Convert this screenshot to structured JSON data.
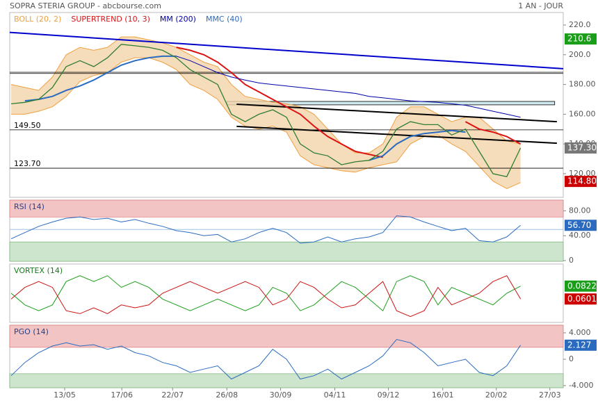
{
  "header": {
    "title": "SOPRA STERIA GROUP - abcbourse.com",
    "period": "1 AN - JOUR"
  },
  "chart_data": [
    {
      "type": "line",
      "x": [
        0,
        1,
        2,
        3,
        4,
        5,
        6,
        7,
        8,
        9,
        10,
        11,
        12,
        13,
        14,
        15,
        16,
        17,
        18,
        19,
        20,
        21,
        22,
        23,
        24,
        25,
        26,
        27,
        28,
        29,
        30,
        31,
        32,
        33,
        34,
        35,
        36,
        37
      ],
      "xlim": [
        -0.1,
        40.1
      ],
      "ylim": [
        104.1,
        228.4
      ],
      "yticks": [
        {
          "value": 220,
          "label": "220.0"
        },
        {
          "value": 200,
          "label": "200.0"
        },
        {
          "value": 180,
          "label": "180.00"
        },
        {
          "value": 160,
          "label": "160.00"
        },
        {
          "value": 140,
          "label": "140.00"
        },
        {
          "value": 120,
          "label": "120.00"
        }
      ],
      "values": [
        167,
        168,
        170,
        178,
        192,
        196,
        192,
        198,
        207,
        206,
        205,
        203,
        198,
        190,
        185,
        180,
        160,
        155,
        160,
        163,
        158,
        140,
        134,
        132,
        126,
        128,
        129,
        135,
        150,
        155,
        153,
        153,
        146,
        150,
        135,
        120,
        118,
        137.3
      ],
      "close_color": "#2f7d2f",
      "band": {
        "name": "BOLL (20, 2)",
        "color": "#f0a040",
        "fill": "#f3d3aa",
        "upper": [
          180,
          178,
          176,
          185,
          200,
          205,
          203,
          205,
          212,
          212,
          210,
          208,
          205,
          200,
          195,
          192,
          180,
          172,
          170,
          168,
          167,
          165,
          160,
          150,
          140,
          134,
          134,
          140,
          158,
          165,
          165,
          160,
          155,
          158,
          158,
          150,
          142,
          140
        ],
        "lower": [
          160,
          160,
          162,
          165,
          172,
          182,
          186,
          188,
          195,
          198,
          198,
          195,
          190,
          180,
          176,
          170,
          158,
          152,
          150,
          152,
          148,
          132,
          126,
          124,
          122,
          121,
          124,
          126,
          128,
          140,
          145,
          146,
          140,
          135,
          125,
          115,
          110,
          114
        ]
      },
      "series": [
        {
          "name": "SUPERTREND (10, 3)",
          "color": "#dd1111",
          "width": 2,
          "values": [
            null,
            null,
            null,
            null,
            null,
            null,
            null,
            null,
            null,
            null,
            null,
            null,
            205,
            203,
            200,
            195,
            188,
            180,
            175,
            170,
            165,
            160,
            152,
            145,
            140,
            135,
            133,
            131,
            null,
            null,
            null,
            null,
            null,
            155,
            150,
            148,
            145,
            140
          ]
        },
        {
          "name": "MM (200)",
          "color": "#0000aa",
          "width": 1,
          "values": [
            null,
            null,
            null,
            null,
            null,
            null,
            null,
            null,
            null,
            null,
            null,
            null,
            199,
            196,
            192,
            188,
            185,
            183,
            181,
            180,
            179,
            178,
            177,
            176,
            175,
            174,
            172,
            171,
            170,
            169,
            168.5,
            168,
            167,
            166,
            164,
            162,
            160,
            158
          ]
        },
        {
          "name": "MMC (40)",
          "color": "#2a6bbf",
          "width": 2,
          "values": [
            null,
            169,
            170,
            172,
            176,
            179,
            183,
            188,
            193,
            196,
            198,
            199,
            199,
            null,
            null,
            null,
            null,
            null,
            null,
            null,
            null,
            null,
            null,
            null,
            null,
            null,
            129,
            132,
            140,
            145,
            147,
            148,
            149,
            148,
            null,
            null,
            null,
            null
          ]
        }
      ],
      "hlines": [
        {
          "value": 149.5,
          "label": "149.50"
        },
        {
          "value": 123.7,
          "label": "123.70"
        },
        {
          "value": 188.2
        },
        {
          "value": 187.4
        }
      ],
      "zones": [
        {
          "x": [
            15.67,
            39.48
          ],
          "values": [
            166.3,
            168.6
          ],
          "color": "#cfe8ee"
        }
      ],
      "trendlines": [
        {
          "x": [
            -0.1,
            40.1
          ],
          "values": [
            215,
            190.6
          ],
          "color": "#0000cc"
        },
        {
          "x": [
            16.38,
            39.64
          ],
          "values": [
            166.7,
            155
          ],
          "color": "#000000"
        },
        {
          "x": [
            16.38,
            39.64
          ],
          "values": [
            151.8,
            140.5
          ],
          "color": "#000000"
        }
      ],
      "markers": [
        {
          "value": 210.6,
          "label": "210.6",
          "color": "#1a9e1a"
        },
        {
          "value": 137.3,
          "label": "137.30",
          "color": "#777777"
        },
        {
          "value": 114.8,
          "label": "114.80",
          "color": "#cc0000"
        }
      ]
    },
    {
      "type": "line",
      "title": "RSI (14)",
      "title_color": "#24408a",
      "ylim": [
        -1.1,
        97.2
      ],
      "yticks": [
        {
          "value": 80,
          "label": "80.00"
        },
        {
          "value": 40,
          "label": "40.00"
        },
        0
      ],
      "bands": [
        {
          "above": 70,
          "color": "#f2c4c4"
        },
        {
          "below": 30,
          "color": "#cde5cd"
        }
      ],
      "midline": 50,
      "series": [
        {
          "color": "#2a6bbf",
          "width": 1,
          "values": [
            35,
            45,
            55,
            62,
            68,
            70,
            66,
            68,
            62,
            66,
            60,
            55,
            48,
            45,
            40,
            42,
            30,
            35,
            45,
            52,
            45,
            28,
            30,
            38,
            30,
            35,
            38,
            45,
            72,
            70,
            62,
            55,
            48,
            52,
            32,
            30,
            38,
            56.7
          ]
        }
      ],
      "markers": [
        {
          "value": 56.7,
          "label": "56.70",
          "color": "#2a6bbf"
        }
      ]
    },
    {
      "type": "line",
      "title": "VORTEX (14)",
      "title_color": "#1a7a1a",
      "ylim": [
        0.02,
        0.12
      ],
      "series": [
        {
          "color": "#1a9e1a",
          "width": 1,
          "values": [
            0.07,
            0.05,
            0.04,
            0.05,
            0.09,
            0.1,
            0.09,
            0.1,
            0.08,
            0.09,
            0.08,
            0.06,
            0.05,
            0.04,
            0.05,
            0.06,
            0.05,
            0.04,
            0.05,
            0.08,
            0.07,
            0.04,
            0.05,
            0.07,
            0.09,
            0.08,
            0.06,
            0.04,
            0.09,
            0.1,
            0.09,
            0.05,
            0.08,
            0.07,
            0.06,
            0.05,
            0.07,
            0.0822
          ]
        },
        {
          "color": "#cc1111",
          "width": 1,
          "values": [
            0.06,
            0.08,
            0.09,
            0.08,
            0.04,
            0.035,
            0.045,
            0.035,
            0.05,
            0.045,
            0.05,
            0.07,
            0.08,
            0.09,
            0.08,
            0.07,
            0.08,
            0.09,
            0.08,
            0.05,
            0.06,
            0.09,
            0.08,
            0.06,
            0.045,
            0.05,
            0.07,
            0.09,
            0.04,
            0.03,
            0.04,
            0.08,
            0.05,
            0.06,
            0.07,
            0.09,
            0.1,
            0.0601
          ]
        }
      ],
      "markers": [
        {
          "value": 0.0822,
          "label": "0.0822",
          "color": "#1a9e1a"
        },
        {
          "value": 0.0601,
          "label": "0.0601",
          "color": "#cc0000"
        }
      ]
    },
    {
      "type": "line",
      "title": "PGO (14)",
      "title_color": "#24408a",
      "ylim": [
        -4.32,
        5.16
      ],
      "yticks": [
        {
          "value": 4,
          "label": "4.000"
        },
        0,
        {
          "value": -4,
          "label": "-4.000"
        }
      ],
      "bands": [
        {
          "above": 1.8,
          "color": "#f2c4c4"
        },
        {
          "below": -2.2,
          "color": "#cde5cd"
        }
      ],
      "series": [
        {
          "color": "#2a6bbf",
          "width": 1,
          "values": [
            -2.5,
            -0.5,
            1,
            2,
            2.5,
            2,
            2.2,
            1.5,
            2,
            1,
            0.5,
            -0.5,
            -1,
            -2,
            -1.5,
            -1,
            -3,
            -2,
            -1,
            1.5,
            0,
            -3,
            -2.5,
            -1.5,
            -3,
            -2,
            -1,
            0.5,
            3,
            2.5,
            1,
            -1,
            -0.5,
            0,
            -2,
            -2.5,
            -1,
            2.127
          ]
        }
      ],
      "markers": [
        {
          "value": 2.127,
          "label": "2.127",
          "color": "#2a6bbf"
        }
      ],
      "xticks": [
        {
          "value": 3.89,
          "label": "13/05"
        },
        {
          "value": 8.04,
          "label": "17/06"
        },
        {
          "value": 11.73,
          "label": "22/07"
        },
        {
          "value": 15.67,
          "label": "26/08"
        },
        {
          "value": 19.57,
          "label": "30/09"
        },
        {
          "value": 23.51,
          "label": "04/11"
        },
        {
          "value": 27.4,
          "label": "09/12"
        },
        {
          "value": 31.35,
          "label": "16/01"
        },
        {
          "value": 35.24,
          "label": "20/02"
        },
        {
          "value": 39.13,
          "label": "27/03"
        }
      ]
    }
  ]
}
